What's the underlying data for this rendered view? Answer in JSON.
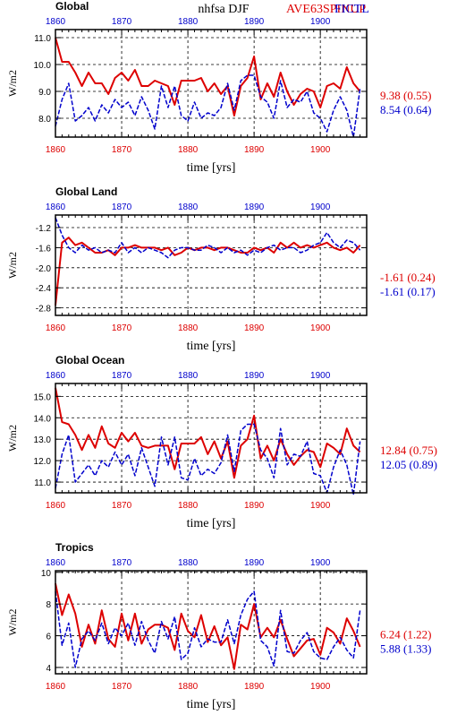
{
  "header": {
    "center_title": "nhfsa  DJF",
    "series_label_a": "AVE63SPINUP",
    "series_label_b": "FICTL"
  },
  "colors": {
    "series_a": "#dd0000",
    "series_b": "#0000cc",
    "axis": "#000000",
    "grid": "#000000"
  },
  "chart_data": [
    {
      "type": "line",
      "title": "Global",
      "ylabel": "W/m2",
      "xlabel": "time [yrs]",
      "xlim": [
        1860,
        1907
      ],
      "ylim": [
        7.3,
        11.3
      ],
      "yticks": [
        8.0,
        9.0,
        10.0,
        11.0
      ],
      "ytick_labels": [
        "8.0",
        "9.0",
        "10.0",
        "11.0"
      ],
      "xticks": [
        1860,
        1870,
        1880,
        1890,
        1900
      ],
      "grid": true,
      "stats": {
        "a": "9.38 (0.55)",
        "b": "8.54 (0.64)"
      },
      "series": [
        {
          "key": "a",
          "values": [
            11.0,
            10.1,
            10.1,
            9.7,
            9.2,
            9.7,
            9.3,
            9.3,
            8.9,
            9.5,
            9.7,
            9.4,
            9.8,
            9.2,
            9.2,
            9.4,
            9.3,
            9.2,
            8.5,
            9.4,
            9.4,
            9.4,
            9.5,
            9.0,
            9.3,
            8.9,
            9.2,
            8.1,
            9.2,
            9.5,
            10.3,
            8.7,
            9.3,
            8.8,
            9.7,
            9.0,
            8.5,
            8.9,
            9.1,
            9.0,
            8.4,
            9.2,
            9.3,
            9.1,
            9.9,
            9.3,
            9.0
          ]
        },
        {
          "key": "b",
          "values": [
            7.7,
            8.7,
            9.3,
            7.9,
            8.1,
            8.4,
            7.9,
            8.5,
            8.2,
            8.7,
            8.4,
            8.6,
            8.1,
            8.8,
            8.3,
            7.6,
            9.2,
            8.4,
            9.2,
            8.1,
            7.9,
            8.6,
            8.0,
            8.2,
            8.1,
            8.4,
            9.3,
            8.3,
            9.4,
            9.6,
            9.6,
            8.8,
            8.6,
            8.0,
            9.4,
            8.4,
            8.7,
            8.6,
            9.0,
            8.2,
            8.0,
            7.5,
            8.3,
            8.8,
            8.3,
            7.3,
            9.1
          ]
        }
      ]
    },
    {
      "type": "line",
      "title": "Global Land",
      "ylabel": "W/m2",
      "xlabel": "time [yrs]",
      "xlim": [
        1860,
        1907
      ],
      "ylim": [
        -2.95,
        -0.95
      ],
      "yticks": [
        -2.8,
        -2.4,
        -2.0,
        -1.6,
        -1.2
      ],
      "ytick_labels": [
        "-2.8",
        "-2.4",
        "-2.0",
        "-1.6",
        "-1.2"
      ],
      "xticks": [
        1860,
        1870,
        1880,
        1890,
        1900
      ],
      "grid": true,
      "stats": {
        "a": "-1.61 (0.24)",
        "b": "-1.61 (0.17)"
      },
      "series": [
        {
          "key": "a",
          "values": [
            -2.75,
            -1.5,
            -1.4,
            -1.55,
            -1.5,
            -1.6,
            -1.7,
            -1.7,
            -1.65,
            -1.75,
            -1.6,
            -1.6,
            -1.55,
            -1.6,
            -1.6,
            -1.6,
            -1.65,
            -1.6,
            -1.75,
            -1.7,
            -1.6,
            -1.65,
            -1.6,
            -1.6,
            -1.65,
            -1.6,
            -1.6,
            -1.65,
            -1.7,
            -1.7,
            -1.6,
            -1.65,
            -1.6,
            -1.7,
            -1.5,
            -1.6,
            -1.5,
            -1.6,
            -1.55,
            -1.6,
            -1.55,
            -1.5,
            -1.6,
            -1.65,
            -1.6,
            -1.7,
            -1.55
          ]
        },
        {
          "key": "b",
          "values": [
            -1.0,
            -1.35,
            -1.6,
            -1.7,
            -1.55,
            -1.65,
            -1.6,
            -1.7,
            -1.65,
            -1.7,
            -1.5,
            -1.7,
            -1.6,
            -1.7,
            -1.6,
            -1.65,
            -1.7,
            -1.8,
            -1.65,
            -1.6,
            -1.6,
            -1.65,
            -1.65,
            -1.55,
            -1.6,
            -1.7,
            -1.6,
            -1.7,
            -1.65,
            -1.75,
            -1.65,
            -1.7,
            -1.6,
            -1.55,
            -1.65,
            -1.6,
            -1.6,
            -1.7,
            -1.65,
            -1.55,
            -1.5,
            -1.3,
            -1.5,
            -1.6,
            -1.45,
            -1.5,
            -1.65
          ]
        }
      ]
    },
    {
      "type": "line",
      "title": "Global Ocean",
      "ylabel": "W/m2",
      "xlabel": "time [yrs]",
      "xlim": [
        1860,
        1907
      ],
      "ylim": [
        10.5,
        15.6
      ],
      "yticks": [
        11.0,
        12.0,
        13.0,
        14.0,
        15.0
      ],
      "ytick_labels": [
        "11.0",
        "12.0",
        "13.0",
        "14.0",
        "15.0"
      ],
      "xticks": [
        1860,
        1870,
        1880,
        1890,
        1900
      ],
      "grid": true,
      "stats": {
        "a": "12.84 (0.75)",
        "b": "12.05 (0.89)"
      },
      "series": [
        {
          "key": "a",
          "values": [
            15.4,
            13.8,
            13.7,
            13.2,
            12.5,
            13.2,
            12.6,
            13.6,
            12.8,
            12.6,
            13.3,
            12.9,
            13.3,
            12.7,
            12.6,
            12.7,
            12.7,
            12.7,
            11.6,
            12.8,
            12.8,
            12.8,
            13.1,
            12.3,
            12.9,
            12.1,
            12.9,
            11.2,
            12.7,
            13.0,
            14.1,
            12.1,
            12.7,
            12.0,
            13.0,
            12.3,
            11.8,
            12.2,
            12.5,
            12.4,
            11.7,
            12.8,
            12.6,
            12.3,
            13.5,
            12.7,
            12.4
          ]
        },
        {
          "key": "b",
          "values": [
            10.7,
            12.3,
            13.2,
            11.0,
            11.4,
            11.8,
            11.3,
            12.0,
            11.7,
            12.4,
            11.8,
            12.3,
            11.3,
            12.6,
            11.7,
            10.8,
            13.1,
            11.8,
            13.1,
            11.2,
            11.1,
            12.1,
            11.3,
            11.6,
            11.4,
            11.9,
            13.2,
            11.5,
            13.4,
            13.7,
            13.7,
            12.5,
            12.1,
            11.2,
            13.5,
            11.8,
            12.3,
            12.2,
            12.9,
            11.4,
            11.3,
            10.5,
            11.7,
            12.5,
            11.8,
            10.4,
            12.9
          ]
        }
      ]
    },
    {
      "type": "line",
      "title": "Tropics",
      "ylabel": "W/m2",
      "xlabel": "time [yrs]",
      "xlim": [
        1860,
        1907
      ],
      "ylim": [
        3.6,
        10.1
      ],
      "yticks": [
        4,
        6,
        8,
        10
      ],
      "ytick_labels": [
        "4",
        "6",
        "8",
        "10"
      ],
      "xticks": [
        1860,
        1870,
        1880,
        1890,
        1900
      ],
      "grid": true,
      "stats": {
        "a": "6.24 (1.22)",
        "b": "5.88 (1.33)"
      },
      "series": [
        {
          "key": "a",
          "values": [
            9.3,
            7.3,
            8.6,
            7.4,
            5.3,
            6.7,
            5.5,
            7.6,
            5.8,
            5.3,
            7.4,
            5.7,
            7.4,
            5.5,
            6.4,
            6.7,
            6.7,
            6.5,
            5.1,
            7.4,
            6.3,
            5.9,
            7.3,
            5.6,
            6.6,
            5.4,
            5.9,
            3.9,
            6.7,
            6.4,
            8.0,
            5.9,
            6.5,
            5.9,
            7.0,
            5.8,
            4.7,
            5.2,
            5.7,
            5.8,
            4.8,
            6.5,
            6.2,
            5.5,
            7.1,
            6.3,
            5.3
          ]
        },
        {
          "key": "b",
          "values": [
            8.8,
            5.4,
            6.8,
            4.0,
            5.8,
            6.3,
            5.7,
            6.8,
            5.5,
            6.5,
            6.0,
            6.8,
            5.4,
            6.9,
            5.7,
            4.9,
            6.9,
            5.8,
            7.2,
            4.5,
            4.9,
            6.5,
            5.3,
            5.8,
            5.6,
            5.6,
            7.0,
            5.5,
            7.3,
            8.3,
            8.8,
            5.7,
            5.3,
            4.1,
            7.6,
            5.0,
            4.9,
            5.7,
            6.2,
            5.0,
            4.6,
            4.5,
            5.3,
            5.9,
            5.1,
            4.6,
            7.6
          ]
        }
      ]
    }
  ]
}
